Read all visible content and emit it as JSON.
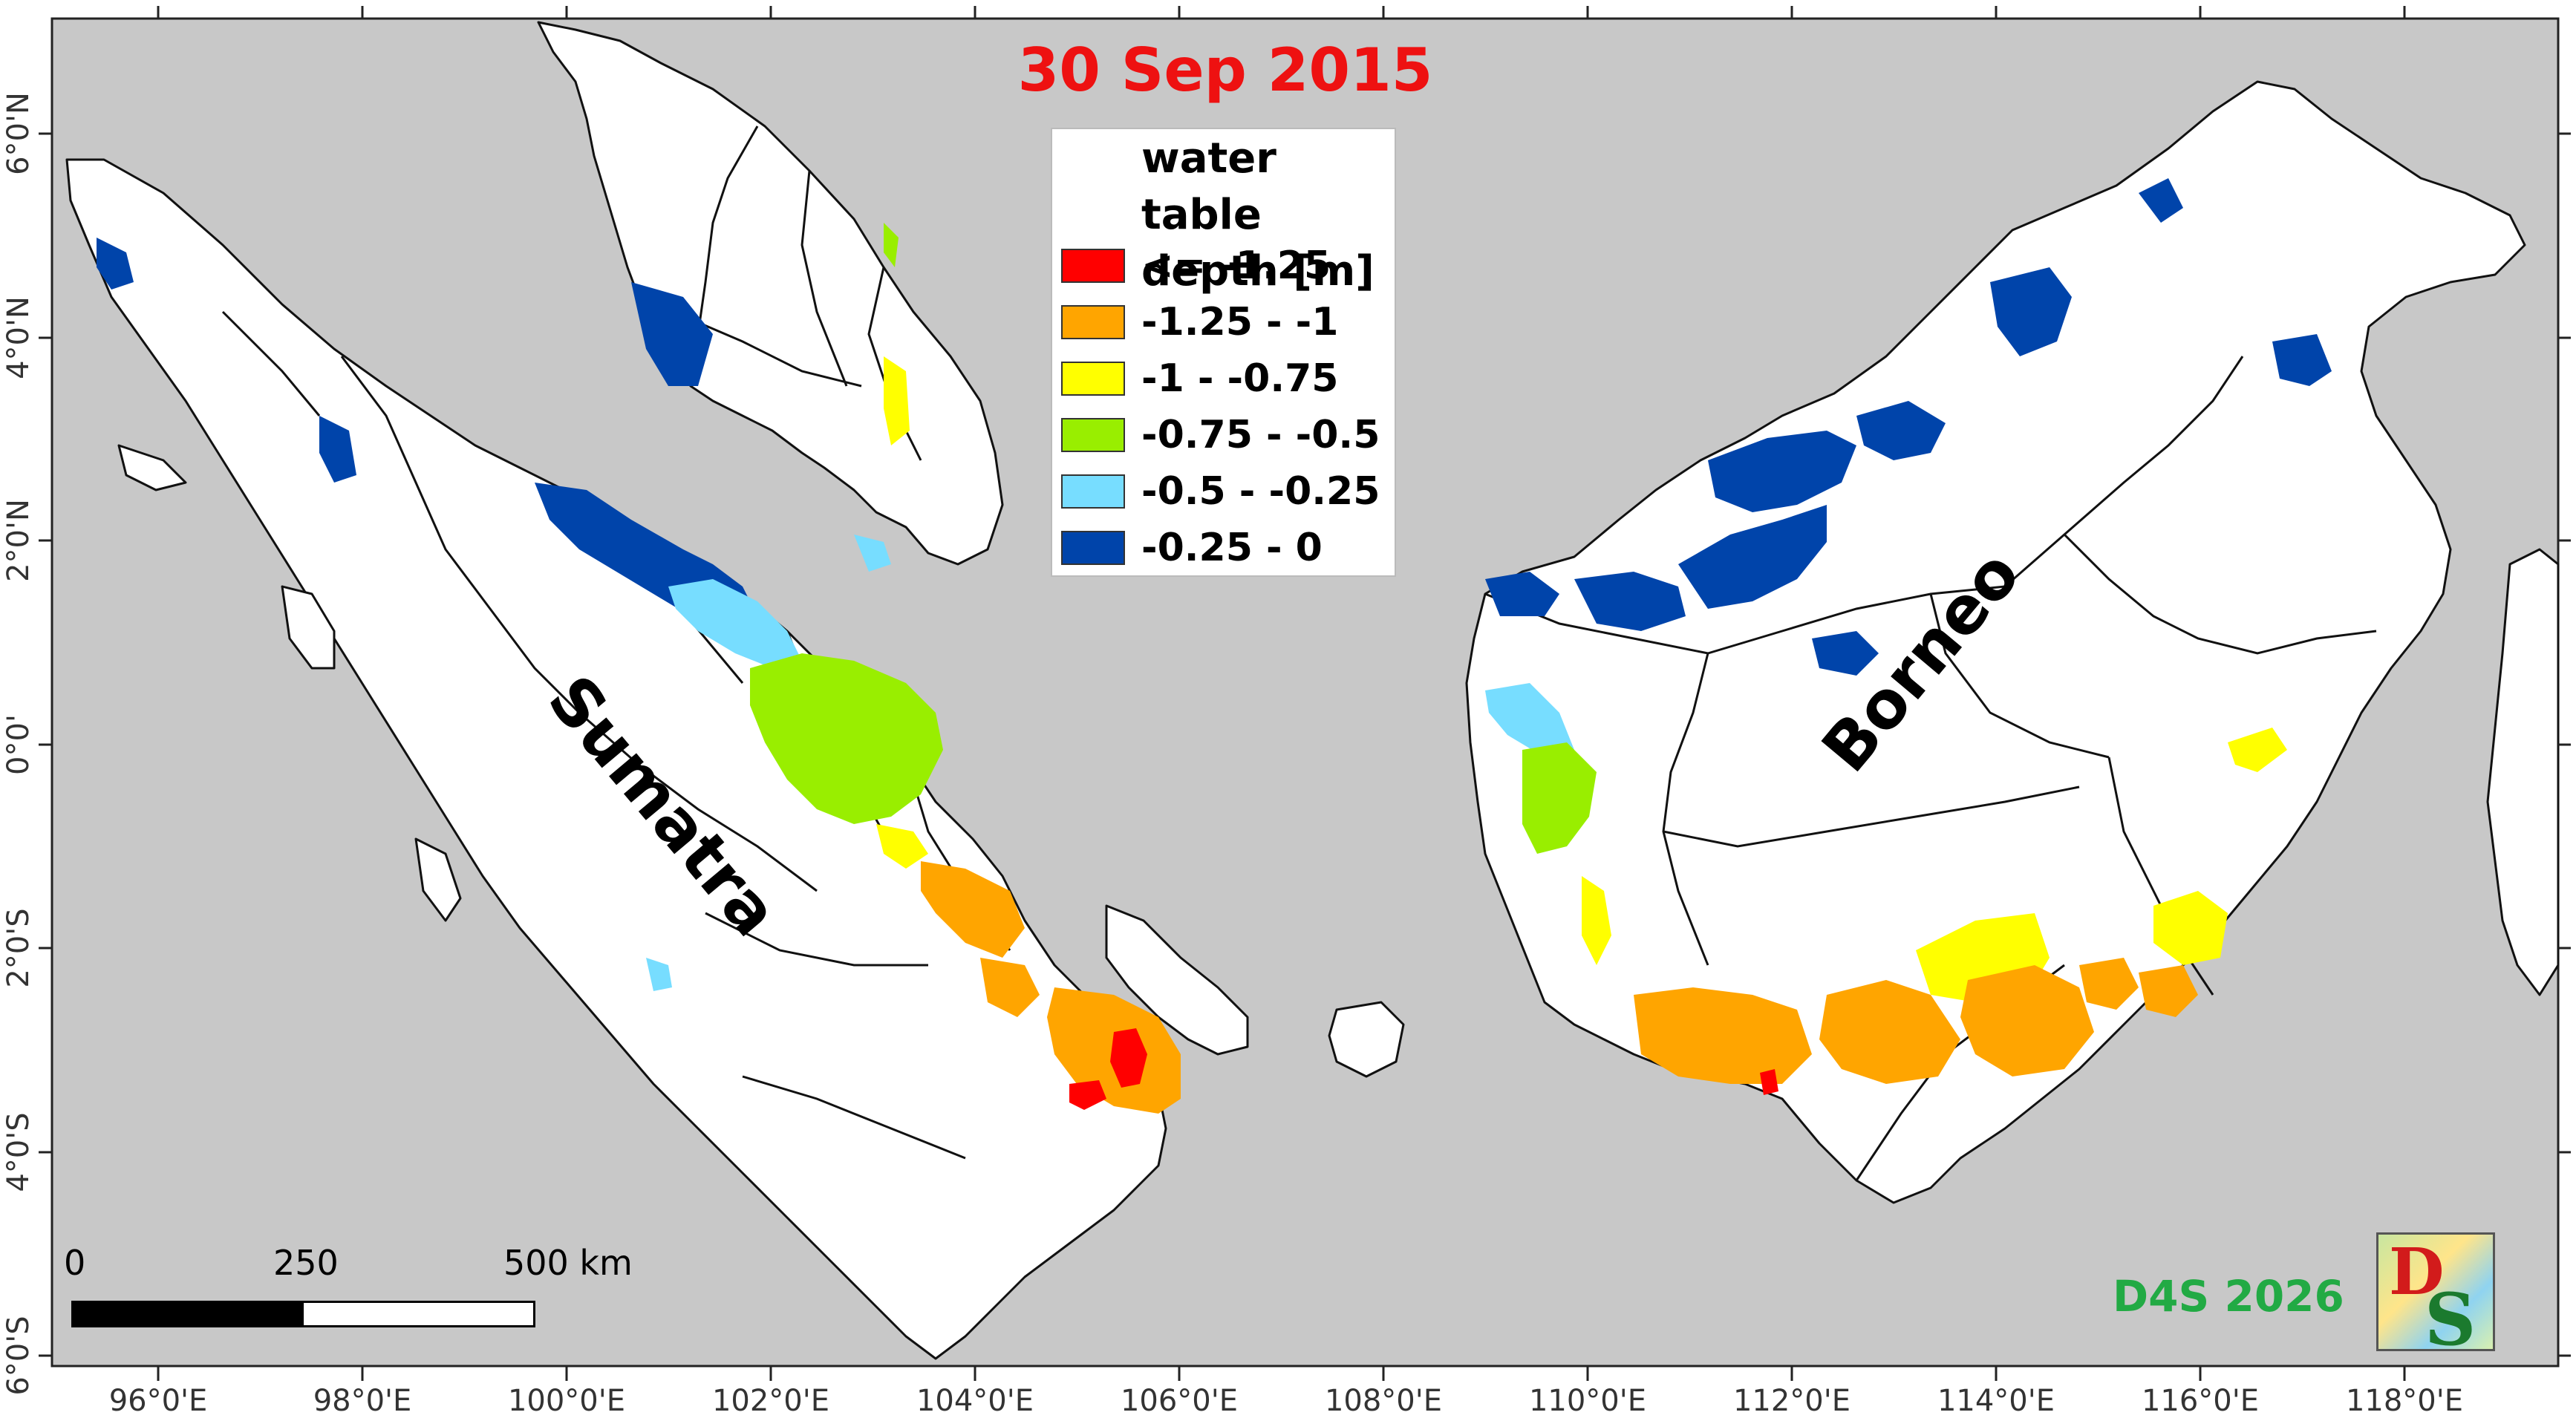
{
  "map": {
    "title": "30 Sep 2015",
    "legend": {
      "title_line1": "water table",
      "title_line2": "depth [m]",
      "classes": [
        {
          "label": "<= -1.25",
          "color": "#ff0000"
        },
        {
          "label": "-1.25 - -1",
          "color": "#ffa500"
        },
        {
          "label": "-1 - -0.75",
          "color": "#ffff00"
        },
        {
          "label": "-0.75 - -0.5",
          "color": "#99ee00"
        },
        {
          "label": "-0.5 - -0.25",
          "color": "#77ddff"
        },
        {
          "label": "-0.25 - 0",
          "color": "#0044aa"
        }
      ]
    },
    "place_labels": {
      "sumatra": "Sumatra",
      "borneo": "Borneo"
    },
    "x_axis_labels": [
      "96°0'E",
      "98°0'E",
      "100°0'E",
      "102°0'E",
      "104°0'E",
      "106°0'E",
      "108°0'E",
      "110°0'E",
      "112°0'E",
      "114°0'E",
      "116°0'E",
      "118°0'E"
    ],
    "y_axis_labels": [
      "6°0'N",
      "4°0'N",
      "2°0'N",
      "0°0'",
      "2°0'S",
      "4°0'S",
      "6°0'S"
    ],
    "scale_bar": {
      "ticks": [
        "0",
        "250",
        "500 km"
      ]
    },
    "credit": "D4S 2026",
    "logo_text": "D4S",
    "colors": {
      "sea": "#c8c8c8",
      "land": "#ffffff"
    }
  }
}
